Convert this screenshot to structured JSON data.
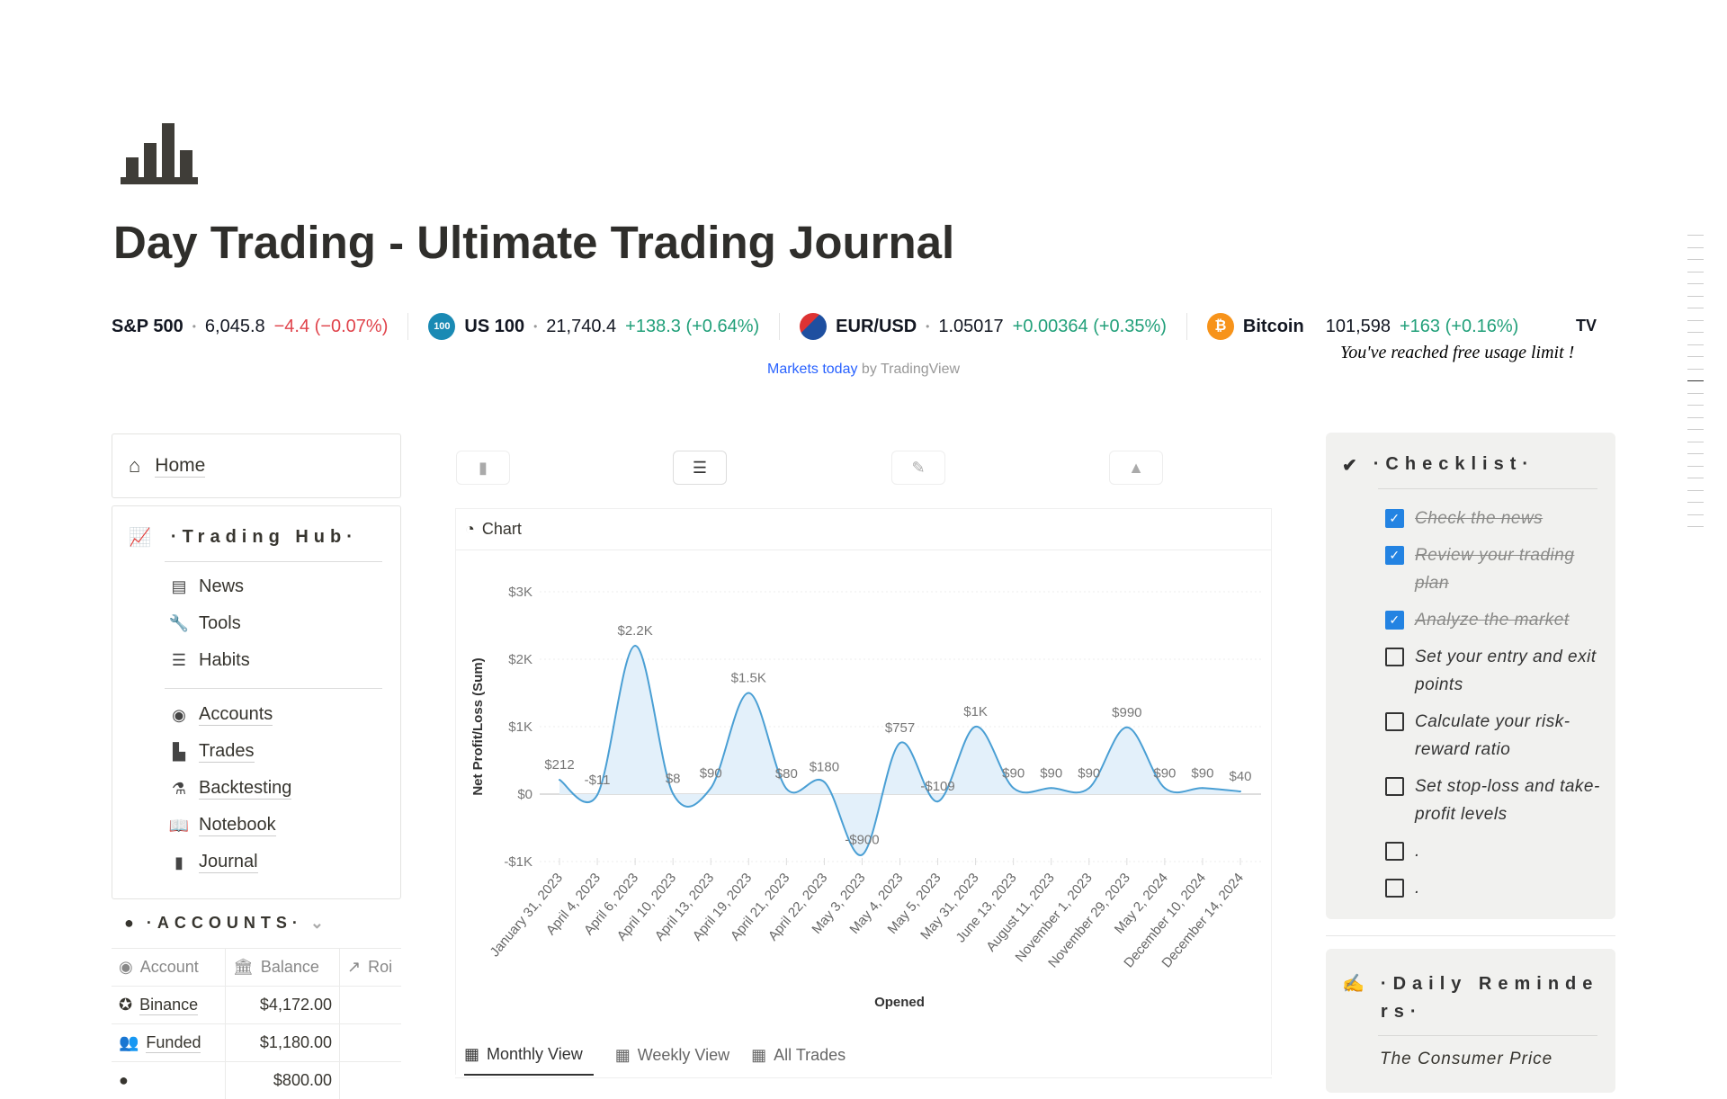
{
  "page": {
    "title": "Day Trading - Ultimate Trading Journal",
    "icon": "bar-chart-icon"
  },
  "ticker": {
    "items": [
      {
        "symbol": "S&P 500",
        "price": "6,045.8",
        "change": "−4.4 (−0.07%)",
        "direction": "down"
      },
      {
        "symbol": "US 100",
        "badge": "100",
        "price": "21,740.4",
        "change": "+138.3 (+0.64%)",
        "direction": "up"
      },
      {
        "symbol": "EUR/USD",
        "price": "1.05017",
        "change": "+0.00364 (+0.35%)",
        "direction": "up"
      },
      {
        "symbol": "Bitcoin",
        "badge": "₿",
        "price": "101,598",
        "change": "+163 (+0.16%)",
        "direction": "up"
      }
    ],
    "overlay": "You've reached free usage limit !",
    "logo": "TV",
    "attribution_link": "Markets today",
    "attribution_by": " by TradingView",
    "colors": {
      "down": "#e0434b",
      "up": "#22a07a"
    }
  },
  "sidebar": {
    "home": "Home",
    "hub_title": "·Trading Hub·",
    "group1": [
      {
        "label": "News",
        "icon": "newspaper-icon"
      },
      {
        "label": "Tools",
        "icon": "wrench-icon"
      },
      {
        "label": "Habits",
        "icon": "checklist-icon"
      }
    ],
    "group2": [
      {
        "label": "Accounts",
        "icon": "user-circle-icon"
      },
      {
        "label": "Trades",
        "icon": "bars-icon"
      },
      {
        "label": "Backtesting",
        "icon": "microscope-icon"
      },
      {
        "label": "Notebook",
        "icon": "book-icon"
      },
      {
        "label": "Journal",
        "icon": "journal-icon"
      }
    ]
  },
  "accounts": {
    "title": "·ACCOUNTS·",
    "columns": [
      "Account",
      "Balance",
      "Roi"
    ],
    "rows": [
      {
        "account": "Binance",
        "balance": "$4,172.00"
      },
      {
        "account": "Funded",
        "balance": "$1,180.00"
      },
      {
        "account": "",
        "balance": "$800.00"
      }
    ]
  },
  "main": {
    "toolbar_icons": [
      "book-icon",
      "checklist-icon",
      "edit-icon",
      "area-chart-icon"
    ],
    "chart_header": "Chart",
    "tabs": [
      "Monthly View",
      "Weekly View",
      "All Trades"
    ]
  },
  "chart_data": {
    "type": "area",
    "xlabel": "Opened",
    "ylabel": "Net Profit/Loss (Sum)",
    "ylim": [
      -1000,
      3000
    ],
    "yticks": [
      {
        "v": 3000,
        "label": "$3K"
      },
      {
        "v": 2000,
        "label": "$2K"
      },
      {
        "v": 1000,
        "label": "$1K"
      },
      {
        "v": 0,
        "label": "$0"
      },
      {
        "v": -1000,
        "label": "-$1K"
      }
    ],
    "grid": true,
    "color": "#4a9fd4",
    "categories": [
      "January 31, 2023",
      "April 4, 2023",
      "April 6, 2023",
      "April 10, 2023",
      "April 13, 2023",
      "April 19, 2023",
      "April 21, 2023",
      "April 22, 2023",
      "May 3, 2023",
      "May 4, 2023",
      "May 5, 2023",
      "May 31, 2023",
      "June 13, 2023",
      "August 11, 2023",
      "November 1, 2023",
      "November 29, 2023",
      "May 2, 2024",
      "December 10, 2024",
      "December 14, 2024"
    ],
    "values": [
      212,
      -11,
      2200,
      8,
      90,
      1500,
      80,
      180,
      -900,
      757,
      -109,
      1000,
      90,
      90,
      90,
      990,
      90,
      90,
      40
    ],
    "labels": [
      "$212",
      "-$11",
      "$2.2K",
      "$8",
      "$90",
      "$1.5K",
      "$80",
      "$180",
      "-$900",
      "$757",
      "-$109",
      "$1K",
      "$90",
      "$90",
      "$90",
      "$990",
      "$90",
      "$90",
      "$40"
    ]
  },
  "checklist": {
    "title": "·Checklist·",
    "items": [
      {
        "text": "Check the news",
        "done": true
      },
      {
        "text": "Review your trading plan",
        "done": true
      },
      {
        "text": "Analyze the market",
        "done": true
      },
      {
        "text": "Set your entry and exit points",
        "done": false
      },
      {
        "text": "Calculate your risk-reward ratio",
        "done": false
      },
      {
        "text": "Set stop-loss and take-profit levels",
        "done": false
      },
      {
        "text": ".",
        "done": false
      },
      {
        "text": ".",
        "done": false
      }
    ]
  },
  "reminders": {
    "title": "·Daily Reminders·",
    "text": "The Consumer Price"
  }
}
